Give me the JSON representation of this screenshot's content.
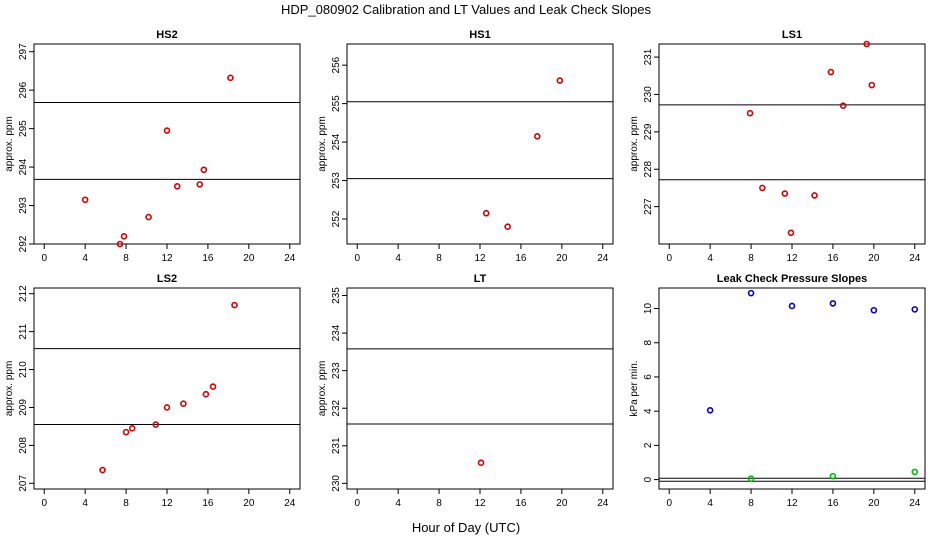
{
  "figure": {
    "title": "HDP_080902  Calibration and LT Values and Leak Check Slopes",
    "xlabel": "Hour of Day (UTC)"
  },
  "chart_data": [
    {
      "type": "scatter",
      "title": "HS2",
      "xlabel": "",
      "ylabel": "approx. ppm",
      "xlim": [
        -1,
        25
      ],
      "ylim": [
        292,
        297.2
      ],
      "xticks": [
        0,
        4,
        8,
        12,
        16,
        20,
        24
      ],
      "yticks": [
        292,
        293,
        294,
        295,
        296,
        297
      ],
      "hlines": [
        293.68,
        295.68
      ],
      "series": [
        {
          "color": "#d40000",
          "x": [
            4.0,
            7.4,
            7.8,
            10.2,
            12.0,
            13.0,
            15.2,
            15.6,
            18.2
          ],
          "y": [
            293.15,
            292.0,
            292.2,
            292.7,
            294.95,
            293.5,
            293.55,
            293.93,
            296.32
          ]
        }
      ]
    },
    {
      "type": "scatter",
      "title": "HS1",
      "xlabel": "",
      "ylabel": "approx. ppm",
      "xlim": [
        -1,
        25
      ],
      "ylim": [
        251.35,
        256.55
      ],
      "xticks": [
        0,
        4,
        8,
        12,
        16,
        20,
        24
      ],
      "yticks": [
        252,
        253,
        254,
        255,
        256
      ],
      "hlines": [
        253.05,
        255.05
      ],
      "series": [
        {
          "color": "#d40000",
          "x": [
            12.6,
            14.7,
            17.6,
            19.8
          ],
          "y": [
            252.15,
            251.8,
            254.15,
            255.6
          ]
        }
      ]
    },
    {
      "type": "scatter",
      "title": "LS1",
      "xlabel": "",
      "ylabel": "approx. ppm",
      "xlim": [
        -1,
        25
      ],
      "ylim": [
        226.0,
        231.35
      ],
      "xticks": [
        0,
        4,
        8,
        12,
        16,
        20,
        24
      ],
      "yticks": [
        227,
        228,
        229,
        230,
        231
      ],
      "hlines": [
        227.72,
        229.72
      ],
      "series": [
        {
          "color": "#d40000",
          "x": [
            7.9,
            9.1,
            11.3,
            11.9,
            14.2,
            15.8,
            17.0,
            19.3,
            19.8
          ],
          "y": [
            229.5,
            227.5,
            227.35,
            226.3,
            227.3,
            230.6,
            229.7,
            231.35,
            230.25
          ]
        }
      ]
    },
    {
      "type": "scatter",
      "title": "LS2",
      "xlabel": "",
      "ylabel": "approx. ppm",
      "xlim": [
        -1,
        25
      ],
      "ylim": [
        206.85,
        212.15
      ],
      "xticks": [
        0,
        4,
        8,
        12,
        16,
        20,
        24
      ],
      "yticks": [
        207,
        208,
        209,
        210,
        211,
        212
      ],
      "hlines": [
        208.55,
        210.55
      ],
      "series": [
        {
          "color": "#d40000",
          "x": [
            5.7,
            8.0,
            8.6,
            10.9,
            12.0,
            13.6,
            15.8,
            16.5,
            18.6
          ],
          "y": [
            207.35,
            208.35,
            208.45,
            208.55,
            209.0,
            209.1,
            209.35,
            209.55,
            211.7
          ]
        }
      ]
    },
    {
      "type": "scatter",
      "title": "LT",
      "xlabel": "",
      "ylabel": "approx. ppm",
      "xlim": [
        -1,
        25
      ],
      "ylim": [
        229.85,
        235.2
      ],
      "xticks": [
        0,
        4,
        8,
        12,
        16,
        20,
        24
      ],
      "yticks": [
        230,
        231,
        232,
        233,
        234,
        235
      ],
      "hlines": [
        231.58,
        233.58
      ],
      "series": [
        {
          "color": "#d40000",
          "x": [
            12.1
          ],
          "y": [
            230.55
          ]
        }
      ]
    },
    {
      "type": "scatter",
      "title": "Leak Check Pressure Slopes",
      "xlabel": "",
      "ylabel": "kPa per min.",
      "xlim": [
        -1,
        25
      ],
      "ylim": [
        -0.55,
        11.2
      ],
      "xticks": [
        0,
        4,
        8,
        12,
        16,
        20,
        24
      ],
      "yticks": [
        0,
        2,
        4,
        6,
        8,
        10
      ],
      "hlines": [
        0.08,
        -0.1
      ],
      "series": [
        {
          "color": "#0000cc",
          "x": [
            4.0,
            8.0,
            12.0,
            16.0,
            20.0,
            24.0
          ],
          "y": [
            4.05,
            10.9,
            10.15,
            10.3,
            9.9,
            9.95
          ]
        },
        {
          "color": "#00bb00",
          "x": [
            8.0,
            16.0,
            24.0
          ],
          "y": [
            0.05,
            0.2,
            0.45
          ]
        }
      ]
    }
  ]
}
